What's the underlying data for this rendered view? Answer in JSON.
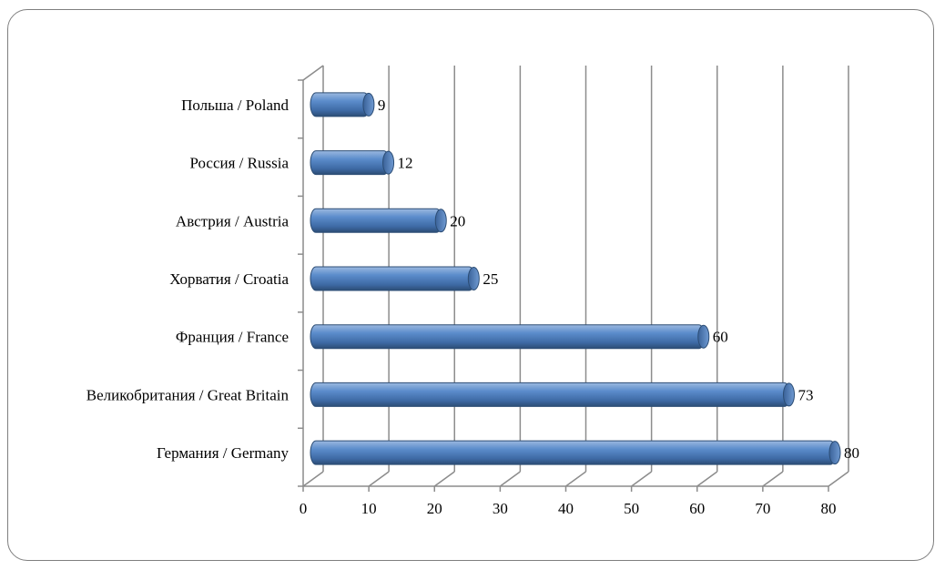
{
  "chart_data": {
    "type": "bar",
    "orientation": "horizontal",
    "style": "3d-cylinder",
    "categories": [
      "Польша / Poland",
      "Россия / Russia",
      "Австрия / Austria",
      "Хорватия / Croatia",
      "Франция / France",
      "Великобритания / Great Britain",
      "Германия / Germany"
    ],
    "values": [
      9,
      12,
      20,
      25,
      60,
      73,
      80
    ],
    "data_labels": [
      "9",
      "12",
      "20",
      "25",
      "60",
      "73",
      "80"
    ],
    "xlim": [
      0,
      80
    ],
    "xticks": [
      0,
      10,
      20,
      30,
      40,
      50,
      60,
      70,
      80
    ],
    "xtick_labels": [
      "0",
      "10",
      "20",
      "30",
      "40",
      "50",
      "60",
      "70",
      "80"
    ],
    "grid": true,
    "legend": "none",
    "colors": {
      "bar": "#4f81bd",
      "bar_dark": "#2c4d75",
      "bar_light": "#9bb9e0",
      "grid": "#8c8c8c"
    }
  }
}
